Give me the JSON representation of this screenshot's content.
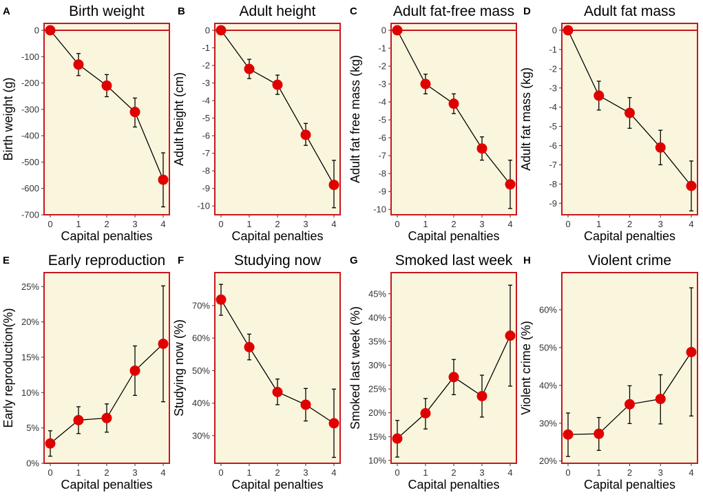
{
  "colors": {
    "panel_fill": "#faf6dd",
    "panel_border": "#c8161d",
    "marker": "#e00000",
    "line": "#000000",
    "zero_line": "#c8161d",
    "text": "#000000",
    "tick_text": "#333333"
  },
  "chart_data": [
    {
      "id": "birth-weight",
      "letter": "A",
      "title": "Birth weight",
      "type": "line",
      "xlabel": "Capital penalties",
      "ylabel": "Birth weight (g)",
      "x": [
        0,
        1,
        2,
        3,
        4
      ],
      "xticks": [
        "0",
        "1",
        "2",
        "3",
        "4"
      ],
      "ylim": [
        -700,
        0
      ],
      "yticks": [
        0,
        -100,
        -200,
        -300,
        -400,
        -500,
        -600,
        -700
      ],
      "ytick_labels": [
        "0",
        "-100",
        "-200",
        "-300",
        "-400",
        "-500",
        "-600",
        "-700"
      ],
      "values": [
        0,
        -130,
        -210,
        -310,
        -567
      ],
      "error_low": [
        0,
        -172,
        -252,
        -367,
        -670
      ],
      "error_high": [
        0,
        -88,
        -168,
        -257,
        -465
      ],
      "zero_line": true
    },
    {
      "id": "adult-height",
      "letter": "B",
      "title": "Adult height",
      "type": "line",
      "xlabel": "Capital penalties",
      "ylabel": "Adult height (cm)",
      "x": [
        0,
        1,
        2,
        3,
        4
      ],
      "xticks": [
        "0",
        "1",
        "2",
        "3",
        "4"
      ],
      "ylim": [
        -10.5,
        0
      ],
      "yticks": [
        0,
        -1,
        -2,
        -3,
        -4,
        -5,
        -6,
        -7,
        -8,
        -9,
        -10
      ],
      "ytick_labels": [
        "0",
        "-1",
        "-2",
        "-3",
        "-4",
        "-5",
        "-6",
        "-7",
        "-8",
        "-9",
        "-10"
      ],
      "values": [
        0,
        -2.2,
        -3.1,
        -5.95,
        -8.8
      ],
      "error_low": [
        0,
        -2.75,
        -3.65,
        -6.55,
        -10.1
      ],
      "error_high": [
        0,
        -1.65,
        -2.55,
        -5.3,
        -7.4
      ],
      "zero_line": true
    },
    {
      "id": "adult-fat-free-mass",
      "letter": "C",
      "title": "Adult fat-free mass",
      "type": "line",
      "xlabel": "Capital penalties",
      "ylabel": "Adult fat free mass (kg)",
      "x": [
        0,
        1,
        2,
        3,
        4
      ],
      "xticks": [
        "0",
        "1",
        "2",
        "3",
        "4"
      ],
      "ylim": [
        -10.3,
        0
      ],
      "yticks": [
        0,
        -1,
        -2,
        -3,
        -4,
        -5,
        -6,
        -7,
        -8,
        -9,
        -10
      ],
      "ytick_labels": [
        "0",
        "-1",
        "-2",
        "-3",
        "-4",
        "-5",
        "-6",
        "-7",
        "-8",
        "-9",
        "-10"
      ],
      "values": [
        0,
        -3.0,
        -4.1,
        -6.6,
        -8.6
      ],
      "error_low": [
        0,
        -3.55,
        -4.65,
        -7.25,
        -9.95
      ],
      "error_high": [
        0,
        -2.45,
        -3.55,
        -5.95,
        -7.25
      ],
      "zero_line": true
    },
    {
      "id": "adult-fat-mass",
      "letter": "D",
      "title": "Adult fat mass",
      "type": "line",
      "xlabel": "Capital penalties",
      "ylabel": "Adult fat mass (kg)",
      "x": [
        0,
        1,
        2,
        3,
        4
      ],
      "xticks": [
        "0",
        "1",
        "2",
        "3",
        "4"
      ],
      "ylim": [
        -9.6,
        0
      ],
      "yticks": [
        0,
        -1,
        -2,
        -3,
        -4,
        -5,
        -6,
        -7,
        -8,
        -9
      ],
      "ytick_labels": [
        "0",
        "-1",
        "-2",
        "-3",
        "-4",
        "-5",
        "-6",
        "-7",
        "-8",
        "-9"
      ],
      "values": [
        0,
        -3.4,
        -4.3,
        -6.1,
        -8.1
      ],
      "error_low": [
        0,
        -4.15,
        -5.1,
        -7.0,
        -9.4
      ],
      "error_high": [
        0,
        -2.65,
        -3.5,
        -5.2,
        -6.8
      ],
      "zero_line": true
    },
    {
      "id": "early-reproduction",
      "letter": "E",
      "title": "Early reproduction",
      "type": "line",
      "xlabel": "Capital penalties",
      "ylabel": "Early reproduction(%)",
      "x": [
        0,
        1,
        2,
        3,
        4
      ],
      "xticks": [
        "0",
        "1",
        "2",
        "3",
        "4"
      ],
      "ylim": [
        0,
        26
      ],
      "yticks": [
        0,
        5,
        10,
        15,
        20,
        25
      ],
      "ytick_labels": [
        "0%",
        "5%",
        "10%",
        "15%",
        "20%",
        "25%"
      ],
      "values": [
        2.8,
        6.1,
        6.4,
        13.1,
        16.9
      ],
      "error_low": [
        1.0,
        4.2,
        4.4,
        9.6,
        8.7
      ],
      "error_high": [
        4.6,
        8.0,
        8.4,
        16.6,
        25.1
      ],
      "zero_line": false
    },
    {
      "id": "studying-now",
      "letter": "F",
      "title": "Studying now",
      "type": "line",
      "xlabel": "Capital penalties",
      "ylabel": "Studying now (%)",
      "x": [
        0,
        1,
        2,
        3,
        4
      ],
      "xticks": [
        "0",
        "1",
        "2",
        "3",
        "4"
      ],
      "ylim": [
        21.5,
        78
      ],
      "yticks": [
        30,
        40,
        50,
        60,
        70
      ],
      "ytick_labels": [
        "30%",
        "40%",
        "50%",
        "60%",
        "70%"
      ],
      "values": [
        71.8,
        57.2,
        43.4,
        39.5,
        33.8
      ],
      "error_low": [
        67.0,
        53.3,
        39.5,
        34.5,
        23.3
      ],
      "error_high": [
        76.5,
        61.2,
        47.4,
        44.5,
        44.3
      ],
      "zero_line": false
    },
    {
      "id": "smoked-last-week",
      "letter": "G",
      "title": "Smoked last week",
      "type": "line",
      "xlabel": "Capital penalties",
      "ylabel": "Smoked last week (%)",
      "x": [
        0,
        1,
        2,
        3,
        4
      ],
      "xticks": [
        "0",
        "1",
        "2",
        "3",
        "4"
      ],
      "ylim": [
        9.4,
        48
      ],
      "yticks": [
        10,
        15,
        20,
        25,
        30,
        35,
        40,
        45
      ],
      "ytick_labels": [
        "10%",
        "15%",
        "20%",
        "25%",
        "30%",
        "35%",
        "40%",
        "45%"
      ],
      "values": [
        14.6,
        19.9,
        27.5,
        23.5,
        36.2
      ],
      "error_low": [
        10.7,
        16.6,
        23.8,
        19.1,
        25.6
      ],
      "error_high": [
        18.4,
        23.0,
        31.2,
        27.9,
        46.8
      ],
      "zero_line": false
    },
    {
      "id": "violent-crime",
      "letter": "H",
      "title": "Violent crime",
      "type": "line",
      "xlabel": "Capital penalties",
      "ylabel": "Violent crime (%)",
      "x": [
        0,
        1,
        2,
        3,
        4
      ],
      "xticks": [
        "0",
        "1",
        "2",
        "3",
        "4"
      ],
      "ylim": [
        19.4,
        68
      ],
      "yticks": [
        20,
        30,
        40,
        50,
        60
      ],
      "ytick_labels": [
        "20%",
        "30%",
        "40%",
        "50%",
        "60%"
      ],
      "values": [
        27.0,
        27.2,
        35.0,
        36.4,
        48.8
      ],
      "error_low": [
        21.2,
        22.8,
        29.9,
        29.8,
        31.9
      ],
      "error_high": [
        32.7,
        31.5,
        39.9,
        42.8,
        65.8
      ],
      "zero_line": false
    }
  ]
}
